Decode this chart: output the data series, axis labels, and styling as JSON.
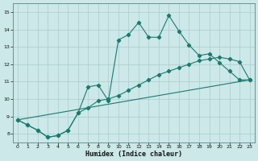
{
  "xlabel": "Humidex (Indice chaleur)",
  "bg_color": "#cce8e8",
  "grid_color": "#aacccc",
  "line_color": "#1a7a6e",
  "xlim": [
    0,
    23
  ],
  "ylim": [
    7.5,
    15.5
  ],
  "xticks": [
    0,
    1,
    2,
    3,
    4,
    5,
    6,
    7,
    8,
    9,
    10,
    11,
    12,
    13,
    14,
    15,
    16,
    17,
    18,
    19,
    20,
    21,
    22,
    23
  ],
  "yticks": [
    8,
    9,
    10,
    11,
    12,
    13,
    14,
    15
  ],
  "curve1_x": [
    0,
    1,
    2,
    3,
    4,
    5,
    6,
    7,
    8,
    9,
    10,
    11,
    12,
    13,
    14,
    15,
    16,
    17,
    18,
    19,
    20,
    21,
    22,
    23
  ],
  "curve1_y": [
    8.8,
    8.5,
    8.2,
    7.8,
    7.9,
    8.2,
    9.2,
    10.7,
    10.8,
    9.9,
    13.4,
    13.7,
    14.4,
    13.55,
    13.55,
    14.8,
    13.9,
    13.1,
    12.5,
    12.6,
    12.1,
    11.6,
    11.1,
    11.1
  ],
  "curve2_x": [
    0,
    1,
    2,
    3,
    4,
    5,
    6,
    7,
    8,
    9,
    10,
    11,
    12,
    13,
    14,
    15,
    16,
    17,
    18,
    19,
    20,
    21,
    22,
    23
  ],
  "curve2_y": [
    8.8,
    8.5,
    8.2,
    7.8,
    7.9,
    8.2,
    9.2,
    9.5,
    9.9,
    10.0,
    10.2,
    10.5,
    10.8,
    11.1,
    11.4,
    11.6,
    11.8,
    12.0,
    12.2,
    12.3,
    12.4,
    12.3,
    12.15,
    11.1
  ],
  "curve3_x": [
    0,
    23
  ],
  "curve3_y": [
    8.8,
    11.1
  ]
}
